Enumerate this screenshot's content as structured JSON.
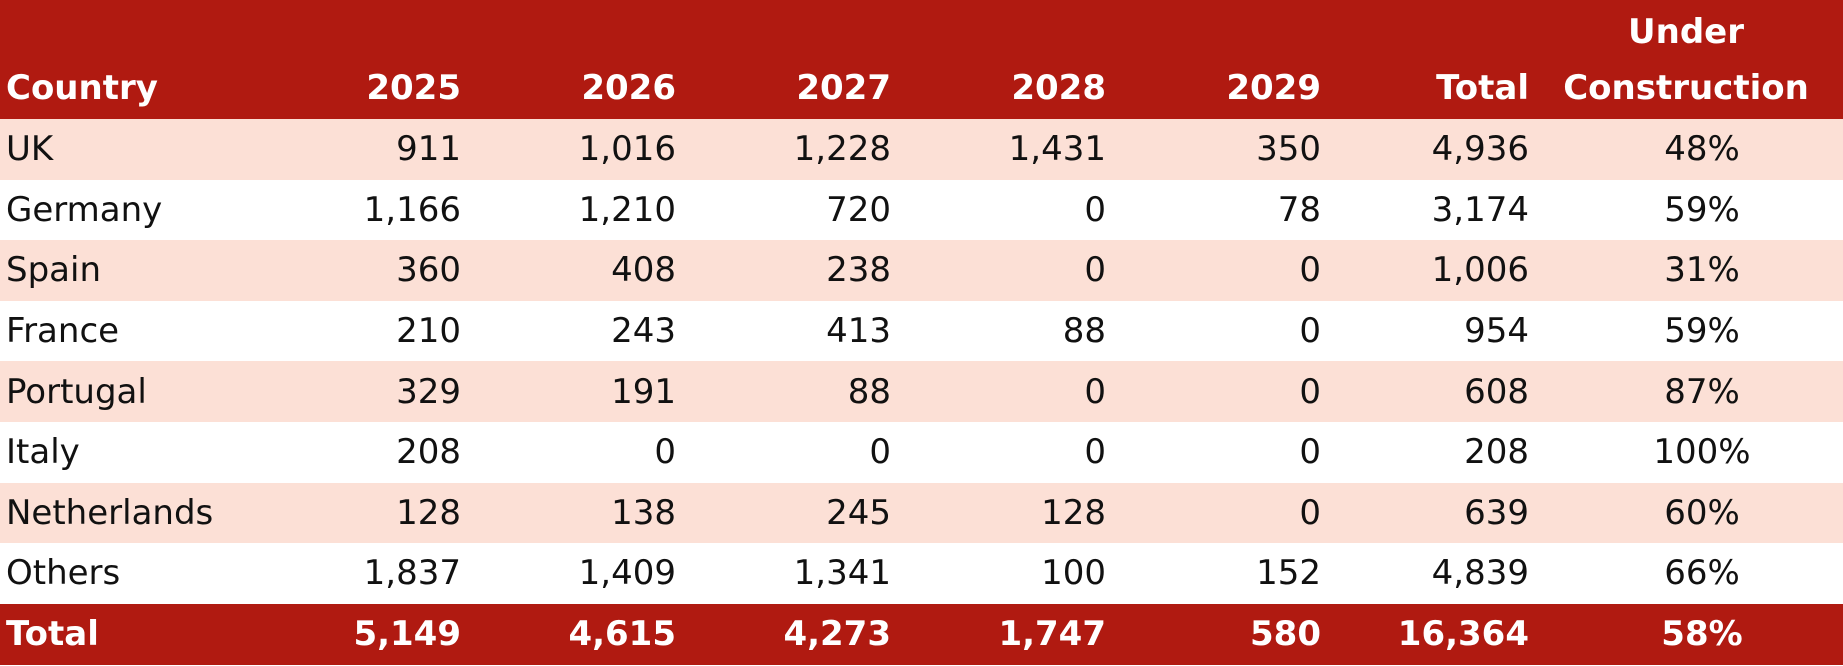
{
  "colors": {
    "header_background": "#b01a11",
    "shaded_row": "#fce0d6",
    "plain_row": "#ffffff",
    "header_text": "#ffffff",
    "body_text": "#111111"
  },
  "table": {
    "headers": {
      "country": "Country",
      "y2025": "2025",
      "y2026": "2026",
      "y2027": "2027",
      "y2028": "2028",
      "y2029": "2029",
      "total": "Total",
      "under_line1": "Under",
      "under_line2": "Construction"
    },
    "rows": [
      {
        "country": "UK",
        "y2025": "911",
        "y2026": "1,016",
        "y2027": "1,228",
        "y2028": "1,431",
        "y2029": "350",
        "total": "4,936",
        "under": "48%"
      },
      {
        "country": "Germany",
        "y2025": "1,166",
        "y2026": "1,210",
        "y2027": "720",
        "y2028": "0",
        "y2029": "78",
        "total": "3,174",
        "under": "59%"
      },
      {
        "country": "Spain",
        "y2025": "360",
        "y2026": "408",
        "y2027": "238",
        "y2028": "0",
        "y2029": "0",
        "total": "1,006",
        "under": "31%"
      },
      {
        "country": "France",
        "y2025": "210",
        "y2026": "243",
        "y2027": "413",
        "y2028": "88",
        "y2029": "0",
        "total": "954",
        "under": "59%"
      },
      {
        "country": "Portugal",
        "y2025": "329",
        "y2026": "191",
        "y2027": "88",
        "y2028": "0",
        "y2029": "0",
        "total": "608",
        "under": "87%"
      },
      {
        "country": "Italy",
        "y2025": "208",
        "y2026": "0",
        "y2027": "0",
        "y2028": "0",
        "y2029": "0",
        "total": "208",
        "under": "100%"
      },
      {
        "country": "Netherlands",
        "y2025": "128",
        "y2026": "138",
        "y2027": "245",
        "y2028": "128",
        "y2029": "0",
        "total": "639",
        "under": "60%"
      },
      {
        "country": "Others",
        "y2025": "1,837",
        "y2026": "1,409",
        "y2027": "1,341",
        "y2028": "100",
        "y2029": "152",
        "total": "4,839",
        "under": "66%"
      }
    ],
    "totals": {
      "country": "Total",
      "y2025": "5,149",
      "y2026": "4,615",
      "y2027": "4,273",
      "y2028": "1,747",
      "y2029": "580",
      "total": "16,364",
      "under": "58%"
    }
  }
}
